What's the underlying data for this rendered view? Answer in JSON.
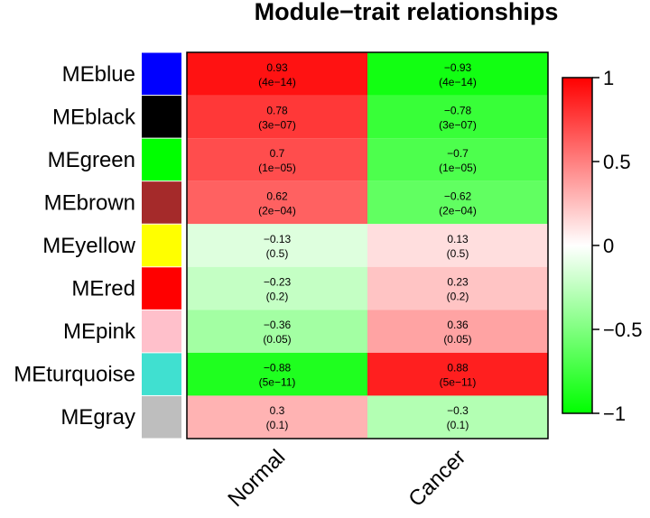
{
  "chart_data": {
    "type": "heatmap",
    "title": "Module−trait relationships",
    "rows": [
      "MEblue",
      "MEblack",
      "MEgreen",
      "MEbrown",
      "MEyellow",
      "MEred",
      "MEpink",
      "MEturquoise",
      "MEgray"
    ],
    "row_colors": [
      "#0000ff",
      "#000000",
      "#00ff00",
      "#a52a2a",
      "#ffff00",
      "#ff0000",
      "#ffc0cb",
      "#40e0d0",
      "#bebebe"
    ],
    "columns": [
      "Normal",
      "Cancer"
    ],
    "values": [
      [
        0.93,
        -0.93
      ],
      [
        0.78,
        -0.78
      ],
      [
        0.7,
        -0.7
      ],
      [
        0.62,
        -0.62
      ],
      [
        -0.13,
        0.13
      ],
      [
        -0.23,
        0.23
      ],
      [
        -0.36,
        0.36
      ],
      [
        -0.88,
        0.88
      ],
      [
        0.3,
        -0.3
      ]
    ],
    "value_labels": [
      [
        "0.93",
        "−0.93"
      ],
      [
        "0.78",
        "−0.78"
      ],
      [
        "0.7",
        "−0.7"
      ],
      [
        "0.62",
        "−0.62"
      ],
      [
        "−0.13",
        "0.13"
      ],
      [
        "−0.23",
        "0.23"
      ],
      [
        "−0.36",
        "0.36"
      ],
      [
        "−0.88",
        "0.88"
      ],
      [
        "0.3",
        "−0.3"
      ]
    ],
    "pvalue_labels": [
      [
        "(4e−14)",
        "(4e−14)"
      ],
      [
        "(3e−07)",
        "(3e−07)"
      ],
      [
        "(1e−05)",
        "(1e−05)"
      ],
      [
        "(2e−04)",
        "(2e−04)"
      ],
      [
        "(0.5)",
        "(0.5)"
      ],
      [
        "(0.2)",
        "(0.2)"
      ],
      [
        "(0.05)",
        "(0.05)"
      ],
      [
        "(5e−11)",
        "(5e−11)"
      ],
      [
        "(0.1)",
        "(0.1)"
      ]
    ],
    "color_scale": {
      "min": -1,
      "max": 1,
      "low": "#00ff00",
      "mid": "#ffffff",
      "high": "#ff0000"
    },
    "legend": {
      "position": "right",
      "ticks": [
        1,
        0.5,
        0,
        -0.5,
        -1
      ],
      "tick_labels": [
        "1",
        "0.5",
        "0",
        "−0.5",
        "−1"
      ]
    }
  }
}
